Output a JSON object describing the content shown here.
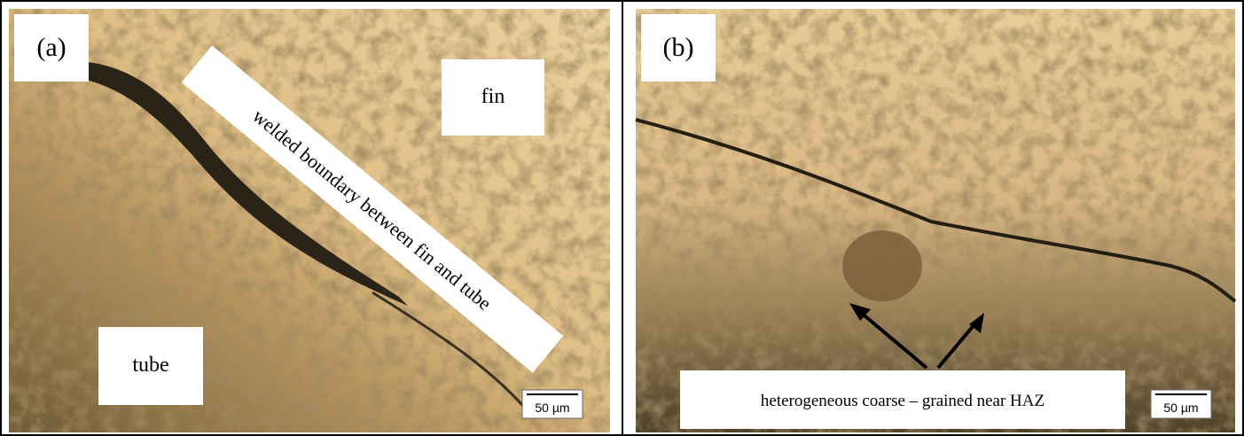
{
  "panels": [
    {
      "label": "(a)",
      "annotations": [
        "welded boundary between fin and tube",
        "fin",
        "tube"
      ],
      "scale_bar": "50 µm"
    },
    {
      "label": "(b)",
      "annotations": [
        "heterogeneous coarse – grained near HAZ"
      ],
      "scale_bar": "50 µm"
    }
  ]
}
